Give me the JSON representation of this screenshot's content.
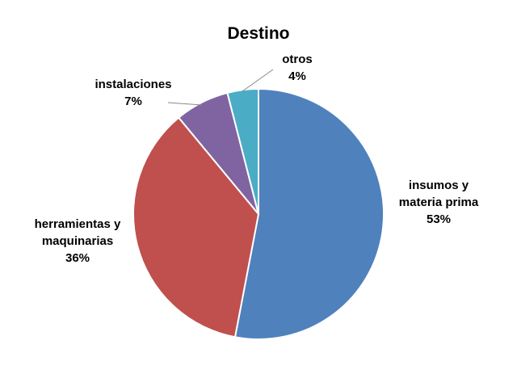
{
  "chart_data": {
    "type": "pie",
    "title": "Destino",
    "slices": [
      {
        "label_lines": [
          "insumos y",
          "materia prima"
        ],
        "value": 53,
        "value_label": "53%",
        "color": "#4F81BD"
      },
      {
        "label_lines": [
          "herramientas y",
          "maquinarias"
        ],
        "value": 36,
        "value_label": "36%",
        "color": "#C0504D"
      },
      {
        "label_lines": [
          "instalaciones"
        ],
        "value": 7,
        "value_label": "7%",
        "color": "#8064A2"
      },
      {
        "label_lines": [
          "otros"
        ],
        "value": 4,
        "value_label": "4%",
        "color": "#4BACC6"
      }
    ],
    "legend": "none"
  }
}
